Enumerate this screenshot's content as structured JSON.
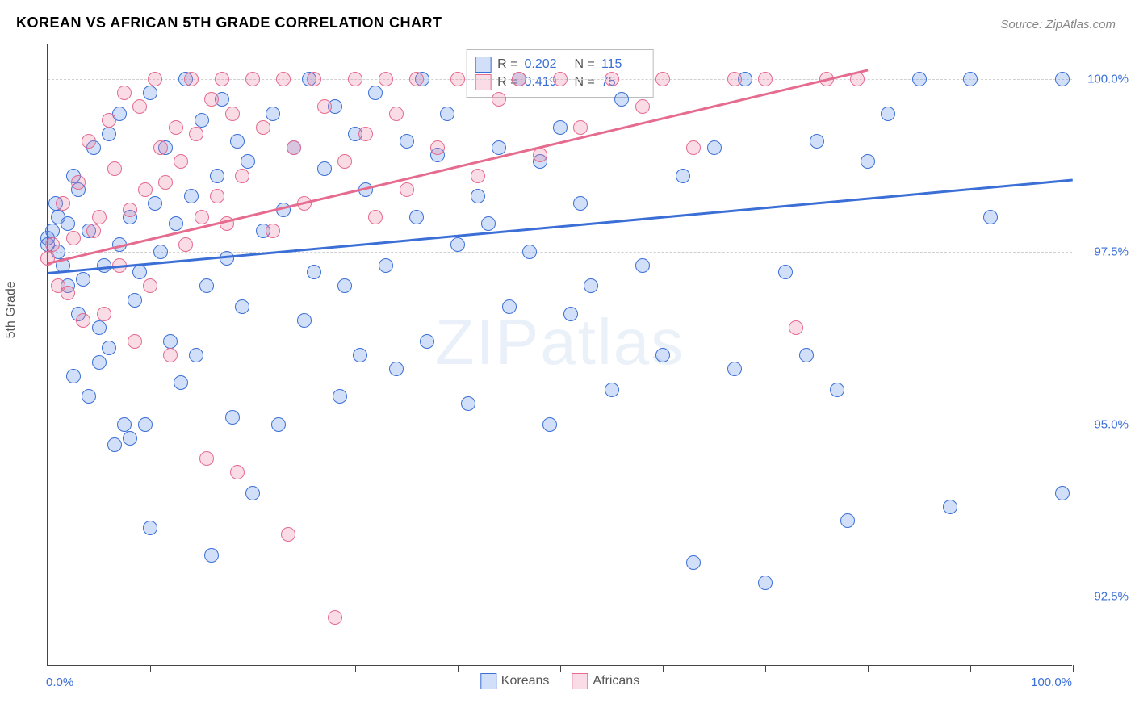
{
  "title": "KOREAN VS AFRICAN 5TH GRADE CORRELATION CHART",
  "source_prefix": "Source: ",
  "source_name": "ZipAtlas.com",
  "ylabel": "5th Grade",
  "watermark": "ZIPatlas",
  "chart": {
    "type": "scatter",
    "background_color": "#ffffff",
    "grid_color": "#d0d0d0",
    "axis_color": "#444444",
    "label_color": "#3b6fd6",
    "title_color": "#333333",
    "title_fontsize": 18,
    "label_fontsize": 15,
    "xlim": [
      0,
      100
    ],
    "ylim": [
      91.5,
      100.5
    ],
    "x_tick_positions": [
      0,
      10,
      20,
      30,
      40,
      50,
      60,
      70,
      80,
      90,
      100
    ],
    "x_min_label": "0.0%",
    "x_max_label": "100.0%",
    "y_ticks": [
      {
        "v": 92.5,
        "label": "92.5%"
      },
      {
        "v": 95.0,
        "label": "95.0%"
      },
      {
        "v": 97.5,
        "label": "97.5%"
      },
      {
        "v": 100.0,
        "label": "100.0%"
      }
    ],
    "point_radius": 9,
    "point_border_width": 1.4,
    "point_fill_opacity": 0.28,
    "series": [
      {
        "name": "Koreans",
        "color": "#3b6fd6",
        "fill": "rgba(90,140,230,0.28)",
        "R": "0.202",
        "N": "115",
        "trend": {
          "x1": 0,
          "y1": 97.2,
          "x2": 100,
          "y2": 98.55,
          "width": 3
        },
        "points": [
          [
            0,
            97.7
          ],
          [
            0,
            97.6
          ],
          [
            0.5,
            97.8
          ],
          [
            0.8,
            98.2
          ],
          [
            1,
            97.5
          ],
          [
            1,
            98.0
          ],
          [
            1.5,
            97.3
          ],
          [
            2,
            97.9
          ],
          [
            2,
            97.0
          ],
          [
            2.5,
            95.7
          ],
          [
            2.5,
            98.6
          ],
          [
            3,
            96.6
          ],
          [
            3,
            98.4
          ],
          [
            3.5,
            97.1
          ],
          [
            4,
            95.4
          ],
          [
            4,
            97.8
          ],
          [
            4.5,
            99.0
          ],
          [
            5,
            95.9
          ],
          [
            5,
            96.4
          ],
          [
            5.5,
            97.3
          ],
          [
            6,
            99.2
          ],
          [
            6,
            96.1
          ],
          [
            6.5,
            94.7
          ],
          [
            7,
            97.6
          ],
          [
            7,
            99.5
          ],
          [
            7.5,
            95.0
          ],
          [
            8,
            98.0
          ],
          [
            8,
            94.8
          ],
          [
            8.5,
            96.8
          ],
          [
            9,
            97.2
          ],
          [
            9.5,
            95.0
          ],
          [
            10,
            99.8
          ],
          [
            10,
            93.5
          ],
          [
            10.5,
            98.2
          ],
          [
            11,
            97.5
          ],
          [
            11.5,
            99.0
          ],
          [
            12,
            96.2
          ],
          [
            12.5,
            97.9
          ],
          [
            13,
            95.6
          ],
          [
            13.5,
            100.0
          ],
          [
            14,
            98.3
          ],
          [
            14.5,
            96.0
          ],
          [
            15,
            99.4
          ],
          [
            15.5,
            97.0
          ],
          [
            16,
            93.1
          ],
          [
            16.5,
            98.6
          ],
          [
            17,
            99.7
          ],
          [
            17.5,
            97.4
          ],
          [
            18,
            95.1
          ],
          [
            18.5,
            99.1
          ],
          [
            19,
            96.7
          ],
          [
            19.5,
            98.8
          ],
          [
            20,
            94.0
          ],
          [
            21,
            97.8
          ],
          [
            22,
            99.5
          ],
          [
            22.5,
            95.0
          ],
          [
            23,
            98.1
          ],
          [
            24,
            99.0
          ],
          [
            25,
            96.5
          ],
          [
            25.5,
            100.0
          ],
          [
            26,
            97.2
          ],
          [
            27,
            98.7
          ],
          [
            28,
            99.6
          ],
          [
            28.5,
            95.4
          ],
          [
            29,
            97.0
          ],
          [
            30,
            99.2
          ],
          [
            30.5,
            96.0
          ],
          [
            31,
            98.4
          ],
          [
            32,
            99.8
          ],
          [
            33,
            97.3
          ],
          [
            34,
            95.8
          ],
          [
            35,
            99.1
          ],
          [
            36,
            98.0
          ],
          [
            36.5,
            100.0
          ],
          [
            37,
            96.2
          ],
          [
            38,
            98.9
          ],
          [
            39,
            99.5
          ],
          [
            40,
            97.6
          ],
          [
            41,
            95.3
          ],
          [
            42,
            98.3
          ],
          [
            43,
            97.9
          ],
          [
            44,
            99.0
          ],
          [
            45,
            96.7
          ],
          [
            46,
            100.0
          ],
          [
            47,
            97.5
          ],
          [
            48,
            98.8
          ],
          [
            49,
            95.0
          ],
          [
            50,
            99.3
          ],
          [
            51,
            96.6
          ],
          [
            52,
            98.2
          ],
          [
            53,
            97.0
          ],
          [
            55,
            95.5
          ],
          [
            56,
            99.7
          ],
          [
            58,
            97.3
          ],
          [
            60,
            96.0
          ],
          [
            62,
            98.6
          ],
          [
            63,
            93.0
          ],
          [
            65,
            99.0
          ],
          [
            67,
            95.8
          ],
          [
            68,
            100.0
          ],
          [
            70,
            92.7
          ],
          [
            72,
            97.2
          ],
          [
            74,
            96.0
          ],
          [
            75,
            99.1
          ],
          [
            77,
            95.5
          ],
          [
            78,
            93.6
          ],
          [
            80,
            98.8
          ],
          [
            82,
            99.5
          ],
          [
            85,
            100.0
          ],
          [
            88,
            93.8
          ],
          [
            90,
            100.0
          ],
          [
            92,
            98.0
          ],
          [
            99,
            100.0
          ],
          [
            99,
            94.0
          ]
        ]
      },
      {
        "name": "Africans",
        "color": "#e56b8f",
        "fill": "rgba(235,130,160,0.28)",
        "R": "0.419",
        "N": "75",
        "trend": {
          "x1": 0,
          "y1": 97.35,
          "x2": 80,
          "y2": 100.15,
          "width": 3
        },
        "points": [
          [
            0,
            97.4
          ],
          [
            0.5,
            97.6
          ],
          [
            1,
            97.0
          ],
          [
            1.5,
            98.2
          ],
          [
            2,
            96.9
          ],
          [
            2.5,
            97.7
          ],
          [
            3,
            98.5
          ],
          [
            3.5,
            96.5
          ],
          [
            4,
            99.1
          ],
          [
            4.5,
            97.8
          ],
          [
            5,
            98.0
          ],
          [
            5.5,
            96.6
          ],
          [
            6,
            99.4
          ],
          [
            6.5,
            98.7
          ],
          [
            7,
            97.3
          ],
          [
            7.5,
            99.8
          ],
          [
            8,
            98.1
          ],
          [
            8.5,
            96.2
          ],
          [
            9,
            99.6
          ],
          [
            9.5,
            98.4
          ],
          [
            10,
            97.0
          ],
          [
            10.5,
            100.0
          ],
          [
            11,
            99.0
          ],
          [
            11.5,
            98.5
          ],
          [
            12,
            96.0
          ],
          [
            12.5,
            99.3
          ],
          [
            13,
            98.8
          ],
          [
            13.5,
            97.6
          ],
          [
            14,
            100.0
          ],
          [
            14.5,
            99.2
          ],
          [
            15,
            98.0
          ],
          [
            15.5,
            94.5
          ],
          [
            16,
            99.7
          ],
          [
            16.5,
            98.3
          ],
          [
            17,
            100.0
          ],
          [
            17.5,
            97.9
          ],
          [
            18,
            99.5
          ],
          [
            18.5,
            94.3
          ],
          [
            19,
            98.6
          ],
          [
            20,
            100.0
          ],
          [
            21,
            99.3
          ],
          [
            22,
            97.8
          ],
          [
            23,
            100.0
          ],
          [
            23.5,
            93.4
          ],
          [
            24,
            99.0
          ],
          [
            25,
            98.2
          ],
          [
            26,
            100.0
          ],
          [
            27,
            99.6
          ],
          [
            28,
            92.2
          ],
          [
            29,
            98.8
          ],
          [
            30,
            100.0
          ],
          [
            31,
            99.2
          ],
          [
            32,
            98.0
          ],
          [
            33,
            100.0
          ],
          [
            34,
            99.5
          ],
          [
            35,
            98.4
          ],
          [
            36,
            100.0
          ],
          [
            38,
            99.0
          ],
          [
            40,
            100.0
          ],
          [
            42,
            98.6
          ],
          [
            44,
            99.7
          ],
          [
            46,
            100.0
          ],
          [
            48,
            98.9
          ],
          [
            50,
            100.0
          ],
          [
            52,
            99.3
          ],
          [
            55,
            100.0
          ],
          [
            58,
            99.6
          ],
          [
            60,
            100.0
          ],
          [
            63,
            99.0
          ],
          [
            67,
            100.0
          ],
          [
            70,
            100.0
          ],
          [
            73,
            96.4
          ],
          [
            76,
            100.0
          ],
          [
            79,
            100.0
          ]
        ]
      }
    ],
    "legend_bottom": [
      "Koreans",
      "Africans"
    ]
  }
}
